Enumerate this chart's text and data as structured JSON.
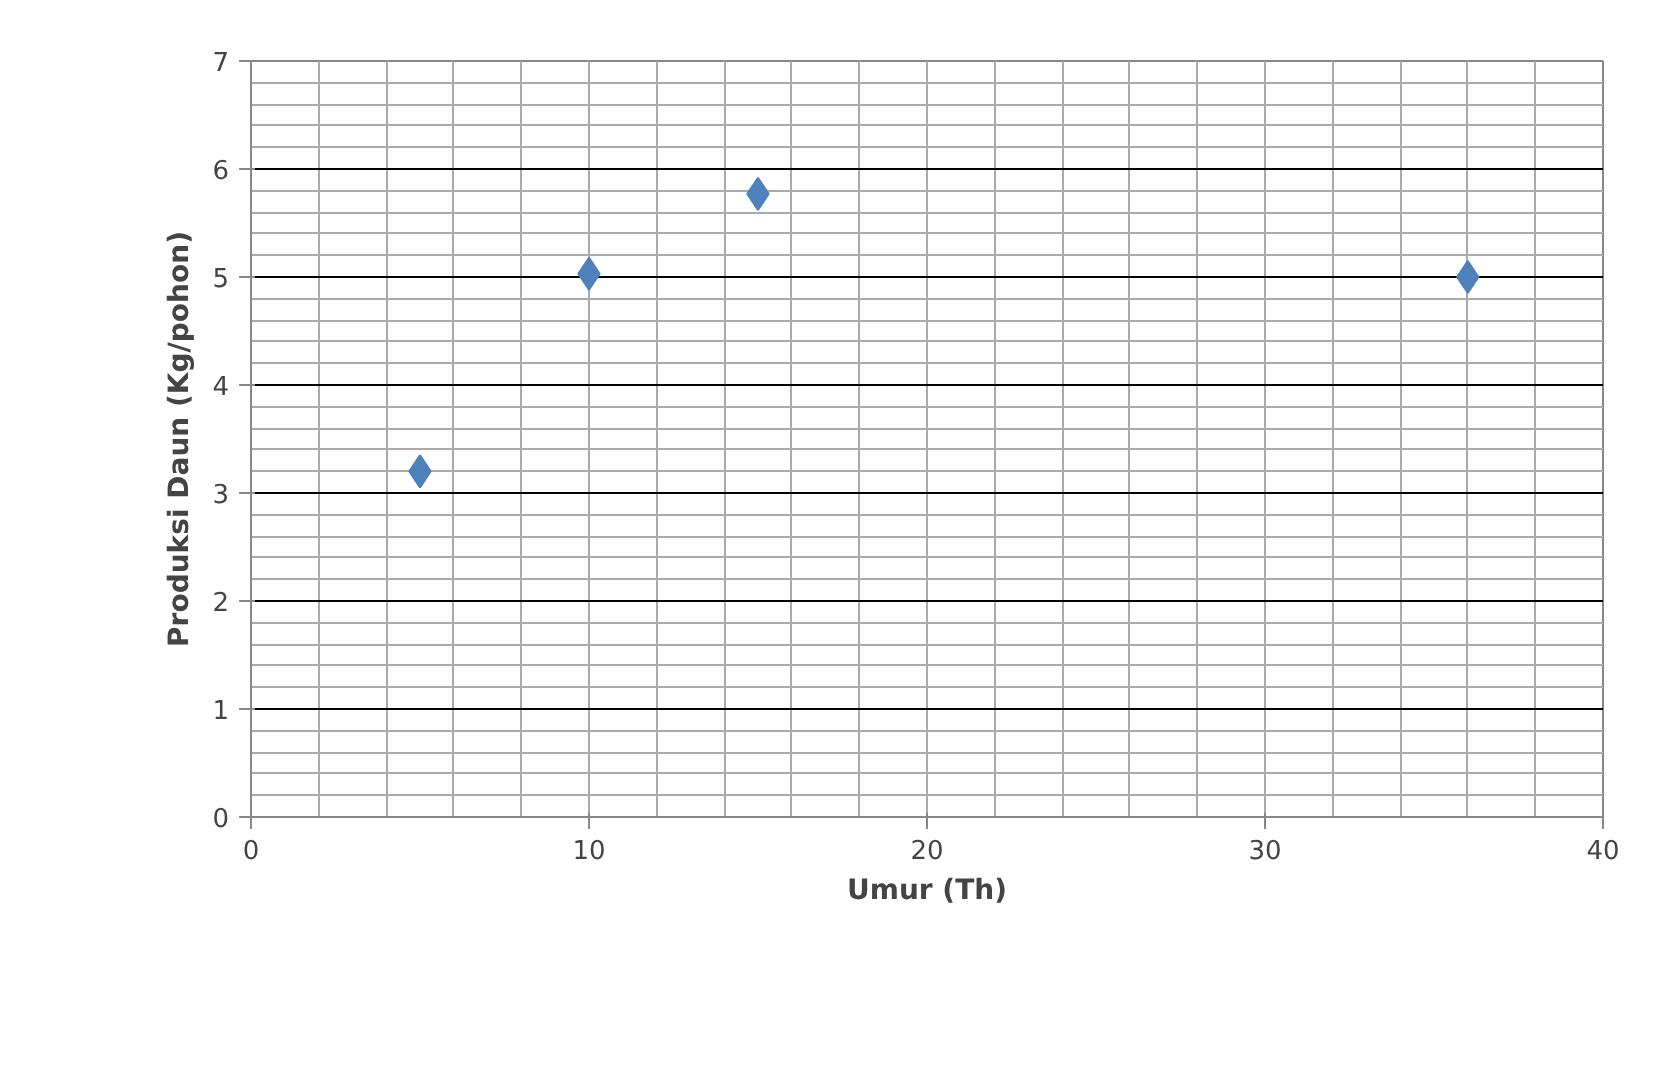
{
  "chart_data": {
    "type": "scatter",
    "xlabel": "Umur (Th)",
    "ylabel": "Produksi Daun (Kg/pohon)",
    "x": [
      5,
      10,
      15,
      36
    ],
    "series": [
      {
        "color": "#4f81bd",
        "values": [
          3.2,
          5.03,
          5.77,
          5.0
        ]
      }
    ],
    "xlim": [
      0,
      40
    ],
    "xticks": [
      0,
      10,
      20,
      30,
      40
    ],
    "ylim": [
      0,
      7
    ],
    "yticks": [
      0,
      1,
      2,
      3,
      4,
      5,
      6,
      7
    ],
    "grid": true,
    "marker": "diamond"
  }
}
